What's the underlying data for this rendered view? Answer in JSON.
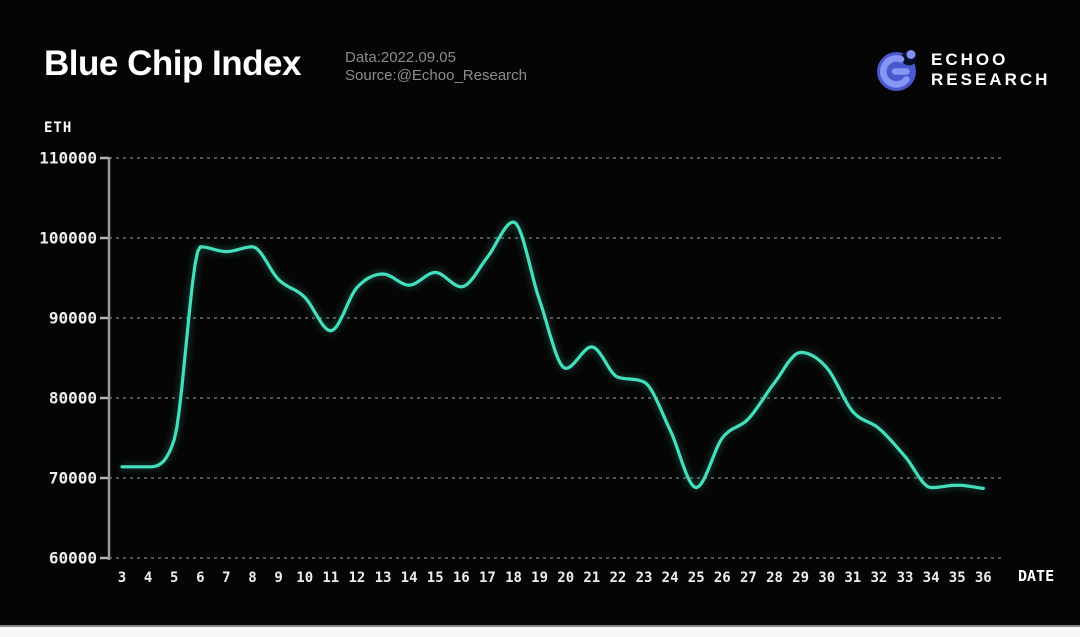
{
  "header": {
    "title": "Blue Chip Index",
    "data_line": "Data:2022.09.05",
    "source_line": "Source:@Echoo_Research",
    "logo": {
      "line1": "ECHOO",
      "line2": "RESEARCH"
    }
  },
  "chart_data": {
    "type": "line",
    "title": "Blue Chip Index",
    "ylabel": "ETH",
    "xlabel": "DATE",
    "x": [
      3,
      4,
      5,
      6,
      7,
      8,
      9,
      10,
      11,
      12,
      13,
      14,
      15,
      16,
      17,
      18,
      19,
      20,
      21,
      22,
      23,
      24,
      25,
      26,
      27,
      28,
      29,
      30,
      31,
      32,
      33,
      34,
      35,
      36
    ],
    "values": [
      71400,
      71400,
      74800,
      98900,
      98300,
      98900,
      94800,
      92600,
      88400,
      93800,
      95500,
      94100,
      95700,
      93900,
      97600,
      102000,
      92200,
      83700,
      86400,
      82600,
      82000,
      76000,
      68800,
      75000,
      77400,
      81900,
      85700,
      83800,
      78300,
      76200,
      72700,
      68800,
      69100,
      68700
    ],
    "yticks": [
      110000,
      100000,
      90000,
      80000,
      70000,
      60000
    ],
    "ylim": [
      60000,
      110000
    ],
    "grid": "horizontal-dashed",
    "legend_position": "none",
    "line_color": "#44e0be"
  },
  "colors": {
    "background": "#050505",
    "line": "#44e0be",
    "axis": "#9c9c9c",
    "tick_text": "#ededed",
    "subtitle_text": "#8c8c8c",
    "logo_circle": "#4a58ce",
    "logo_accent": "#8696f4",
    "bottom_strip": "#f6f6f6"
  }
}
